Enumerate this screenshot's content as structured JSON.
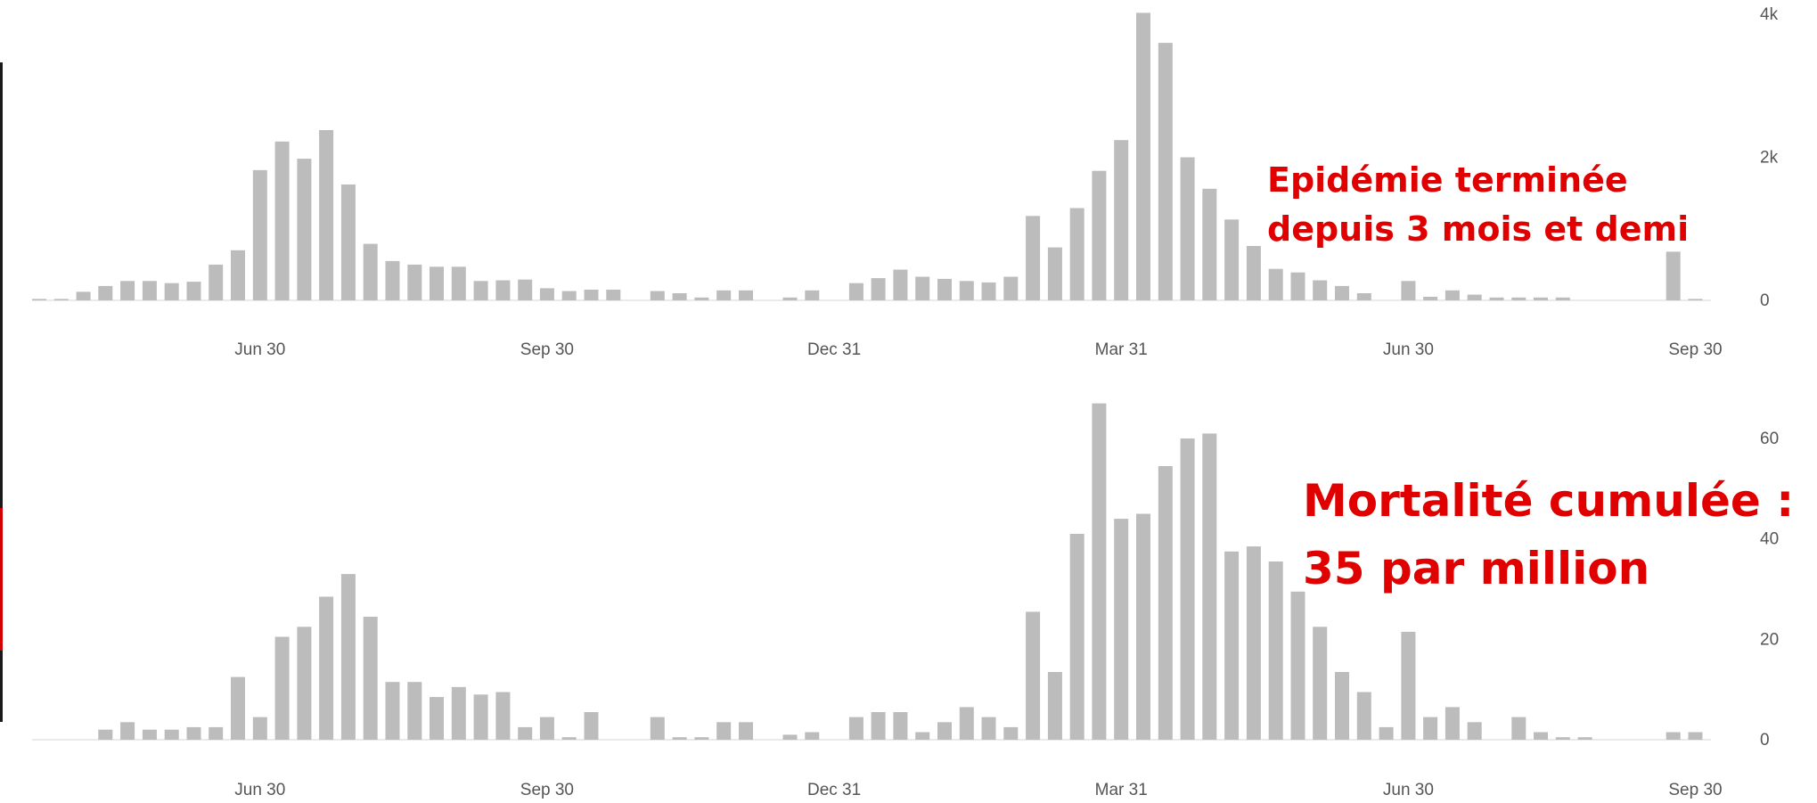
{
  "colors": {
    "bar": "#bcbcbc",
    "annotation": "#e00000",
    "edge_top": "#1a1a1a",
    "edge_mid": "#d40000"
  },
  "annotations": {
    "top": [
      "Epidémie terminée",
      "depuis 3 mois et demi"
    ],
    "bottom": [
      "Mortalité cumulée :",
      "35 par million"
    ]
  },
  "chart_data": [
    {
      "type": "bar",
      "title": "",
      "xlabel": "",
      "ylabel": "",
      "grid": false,
      "legend": "none",
      "ylim": [
        0,
        4000
      ],
      "y_tick_labels": [
        {
          "value": 0,
          "label": "0"
        },
        {
          "value": 2000,
          "label": "2k"
        },
        {
          "value": 4000,
          "label": "4k"
        }
      ],
      "x_tick_labels": [
        {
          "index": 10,
          "label": "Jun 30"
        },
        {
          "index": 23,
          "label": "Sep 30"
        },
        {
          "index": 36,
          "label": "Dec 31"
        },
        {
          "index": 49,
          "label": "Mar 31"
        },
        {
          "index": 62,
          "label": "Jun 30"
        },
        {
          "index": 75,
          "label": "Sep 30"
        }
      ],
      "values": [
        20,
        20,
        120,
        200,
        270,
        270,
        240,
        260,
        500,
        700,
        1820,
        2220,
        1980,
        2380,
        1620,
        790,
        550,
        500,
        470,
        470,
        270,
        280,
        290,
        170,
        130,
        150,
        150,
        null,
        130,
        100,
        40,
        140,
        140,
        null,
        40,
        140,
        null,
        240,
        310,
        430,
        330,
        300,
        270,
        250,
        330,
        1180,
        740,
        1290,
        1810,
        2240,
        4020,
        3600,
        2000,
        1560,
        1130,
        760,
        440,
        390,
        280,
        200,
        100,
        null,
        270,
        50,
        140,
        80,
        40,
        40,
        40,
        40,
        null,
        null,
        null,
        null,
        680,
        20
      ]
    },
    {
      "type": "bar",
      "title": "",
      "xlabel": "",
      "ylabel": "",
      "grid": false,
      "legend": "none",
      "ylim": [
        0,
        60
      ],
      "y_tick_labels": [
        {
          "value": 0,
          "label": "0"
        },
        {
          "value": 20,
          "label": "20"
        },
        {
          "value": 40,
          "label": "40"
        },
        {
          "value": 60,
          "label": "60"
        }
      ],
      "x_tick_labels": [
        {
          "index": 10,
          "label": "Jun 30"
        },
        {
          "index": 23,
          "label": "Sep 30"
        },
        {
          "index": 36,
          "label": "Dec 31"
        },
        {
          "index": 49,
          "label": "Mar 31"
        },
        {
          "index": 62,
          "label": "Jun 30"
        },
        {
          "index": 75,
          "label": "Sep 30"
        }
      ],
      "values": [
        null,
        null,
        null,
        2,
        3.5,
        2,
        2,
        2.5,
        2.5,
        12.5,
        4.5,
        20.5,
        22.5,
        28.5,
        33,
        24.5,
        11.5,
        11.5,
        8.5,
        10.5,
        9,
        9.5,
        2.5,
        4.5,
        0.5,
        5.5,
        null,
        null,
        4.5,
        0.5,
        0.5,
        3.5,
        3.5,
        null,
        1,
        1.5,
        null,
        4.5,
        5.5,
        5.5,
        1.5,
        3.5,
        6.5,
        4.5,
        2.5,
        25.5,
        13.5,
        41,
        67,
        44,
        45,
        54.5,
        60,
        61,
        37.5,
        38.5,
        35.5,
        29.5,
        22.5,
        13.5,
        9.5,
        2.5,
        21.5,
        4.5,
        6.5,
        3.5,
        null,
        4.5,
        1.5,
        0.5,
        0.5,
        null,
        null,
        null,
        1.5,
        1.5,
        null
      ]
    }
  ]
}
